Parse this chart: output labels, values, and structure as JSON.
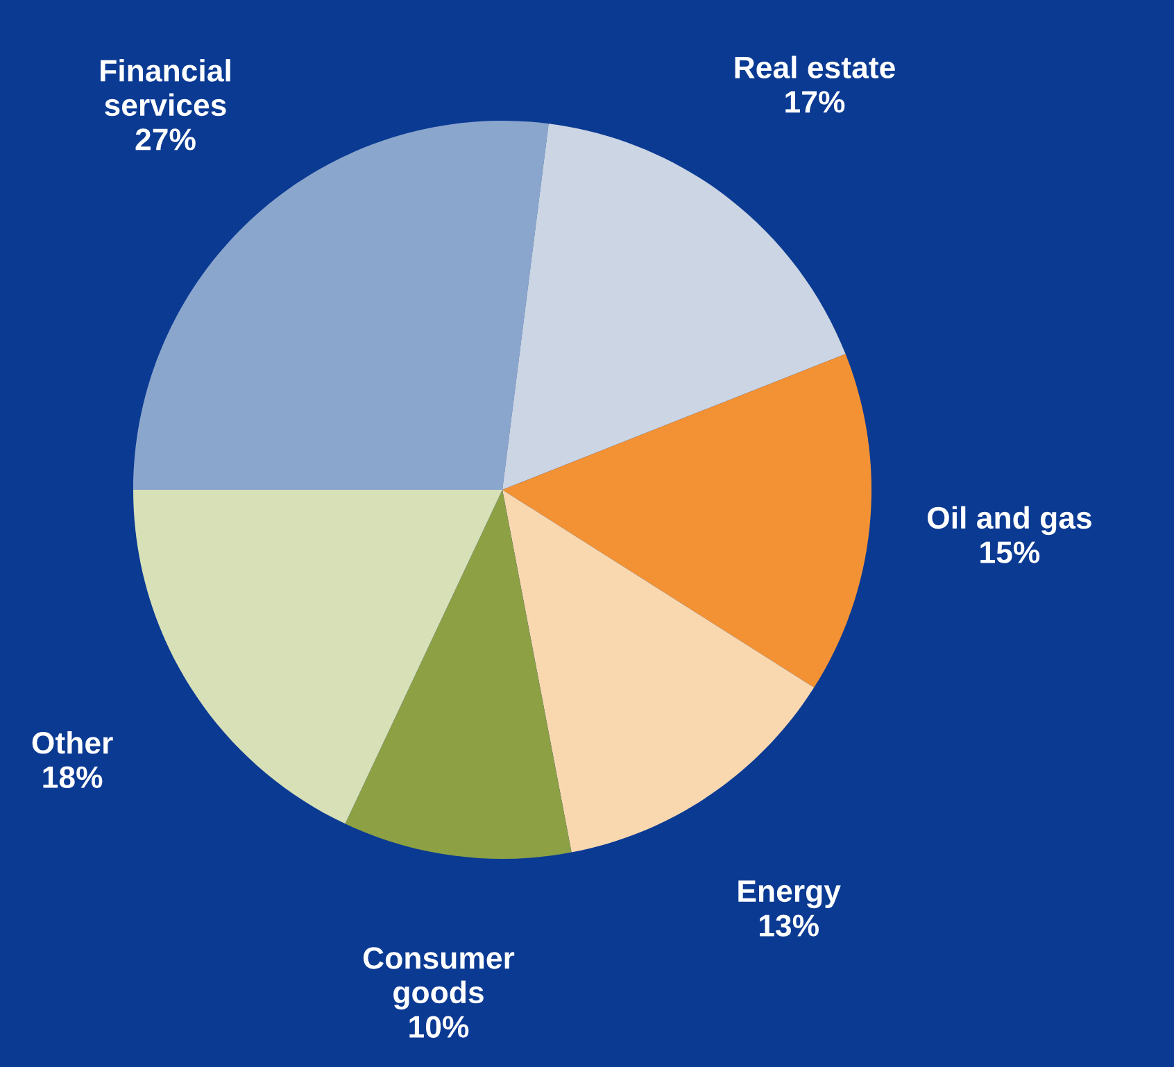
{
  "chart_data": {
    "type": "pie",
    "categories": [
      "Financial services",
      "Real estate",
      "Oil and gas",
      "Energy",
      "Consumer goods",
      "Other"
    ],
    "values": [
      27,
      17,
      15,
      13,
      10,
      18
    ],
    "value_labels": [
      "27%",
      "17%",
      "15%",
      "13%",
      "10%",
      "18%"
    ],
    "colors": [
      "#8aa6cc",
      "#cbd5e3",
      "#f39234",
      "#f9d8b0",
      "#8da044",
      "#d7e0b6"
    ],
    "legend": false
  }
}
